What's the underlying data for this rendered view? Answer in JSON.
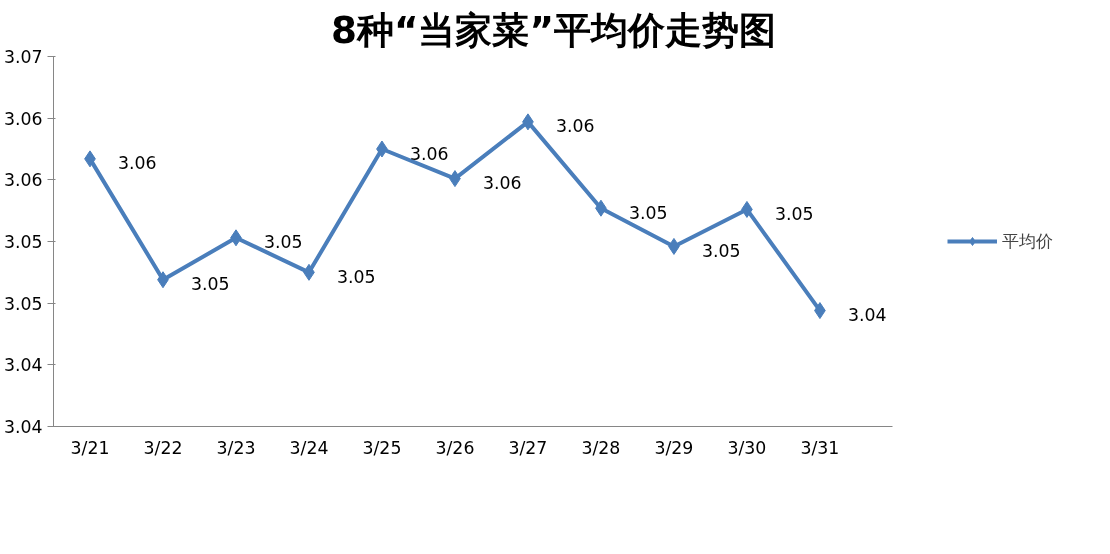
{
  "chart_data": {
    "type": "line",
    "title": "8种“当家菜”平均价走势图",
    "categories": [
      "3/21",
      "3/22",
      "3/23",
      "3/24",
      "3/25",
      "3/26",
      "3/27",
      "3/28",
      "3/29",
      "3/30",
      "3/31"
    ],
    "series": [
      {
        "name": "平均价",
        "color": "#4a7ebb",
        "values": [
          3.0572,
          3.0474,
          3.0508,
          3.048,
          3.058,
          3.0556,
          3.0602,
          3.0532,
          3.0501,
          3.0531,
          3.0449
        ],
        "value_labels": [
          "3.06",
          "3.05",
          "3.05",
          "3.05",
          "3.06",
          "3.06",
          "3.06",
          "3.05",
          "3.05",
          "3.05",
          "3.04"
        ]
      }
    ],
    "ylim": [
      3.0355,
      3.0655
    ],
    "yticks": [
      {
        "value": 3.0355,
        "label": "3.04"
      },
      {
        "value": 3.0405,
        "label": "3.04"
      },
      {
        "value": 3.0455,
        "label": "3.05"
      },
      {
        "value": 3.0505,
        "label": "3.05"
      },
      {
        "value": 3.0555,
        "label": "3.06"
      },
      {
        "value": 3.0605,
        "label": "3.06"
      },
      {
        "value": 3.0655,
        "label": "3.07"
      }
    ],
    "grid": false,
    "legend": "right",
    "marker": "diamond",
    "line_style": "solid"
  }
}
